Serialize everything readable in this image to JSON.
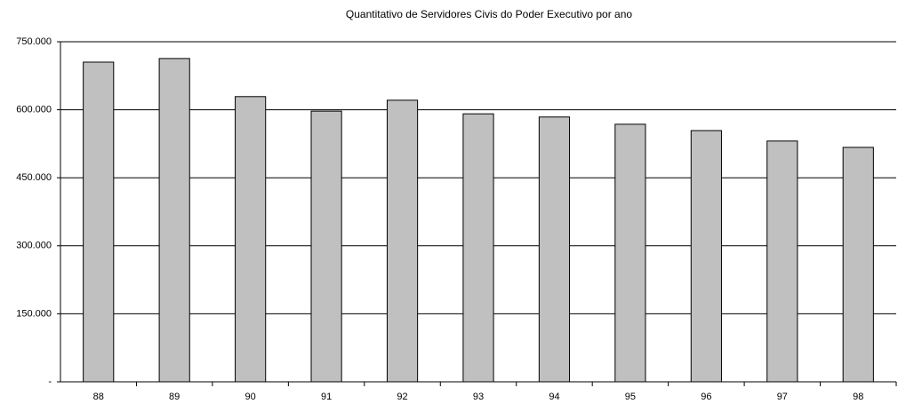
{
  "chart_data": {
    "type": "bar",
    "title": "Quantitativo de Servidores Civis do Poder Executivo por ano",
    "categories": [
      "88",
      "89",
      "90",
      "91",
      "92",
      "93",
      "94",
      "95",
      "96",
      "97",
      "98"
    ],
    "values": [
      705000,
      713000,
      629000,
      597000,
      621000,
      591000,
      584000,
      568000,
      554000,
      531000,
      517000
    ],
    "color": "#c0c0c0",
    "ylim": [
      0,
      750000
    ],
    "yticks": [
      {
        "value": 0,
        "label": "-"
      },
      {
        "value": 150000,
        "label": "150.000"
      },
      {
        "value": 300000,
        "label": "300.000"
      },
      {
        "value": 450000,
        "label": "450.000"
      },
      {
        "value": 600000,
        "label": "600.000"
      },
      {
        "value": 750000,
        "label": "750.000"
      }
    ],
    "grid": true
  }
}
